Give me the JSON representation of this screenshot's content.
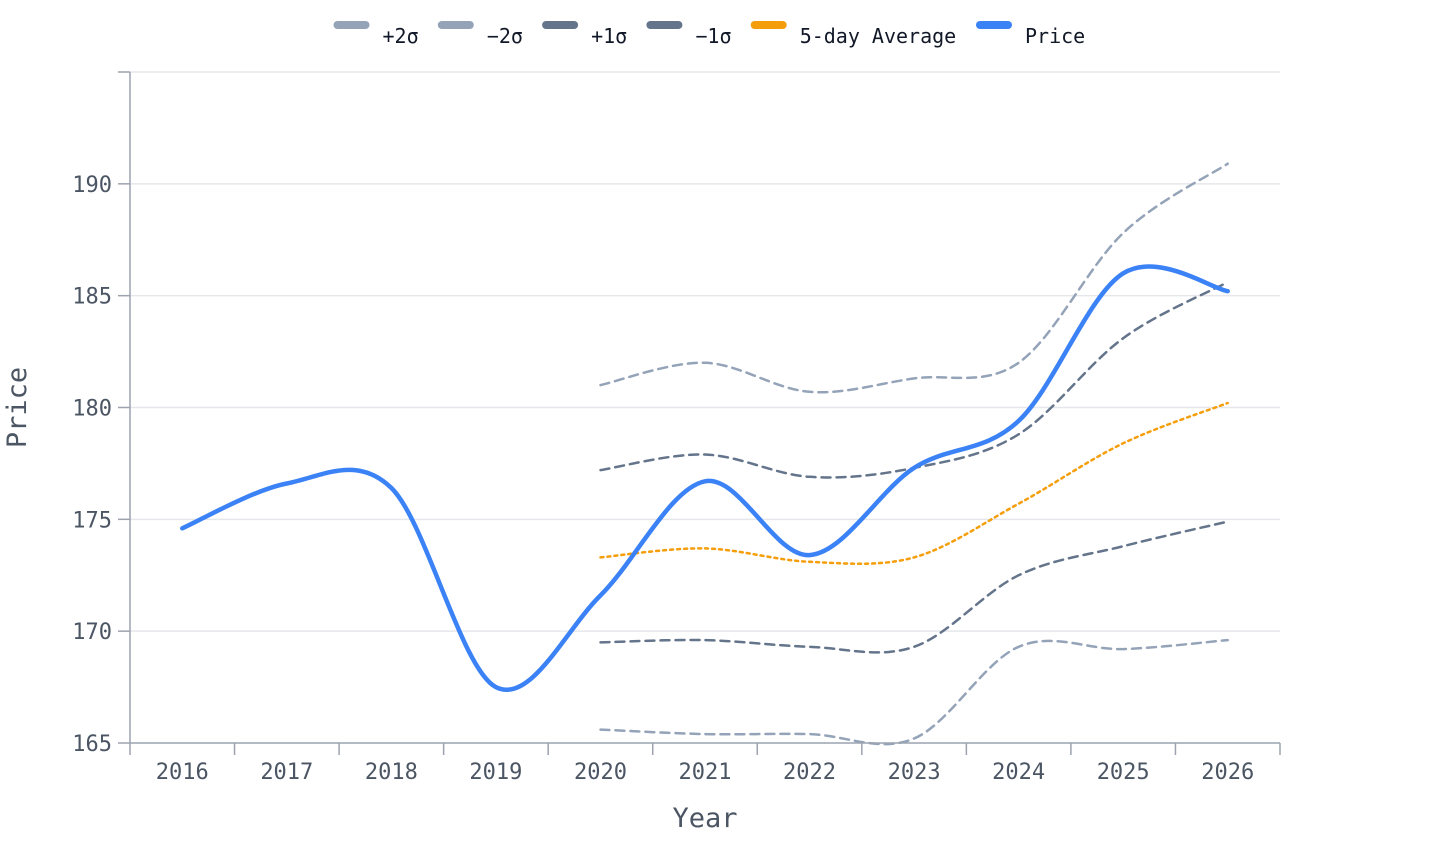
{
  "chart_data": {
    "type": "line",
    "title": "",
    "xlabel": "Year",
    "ylabel": "Price",
    "x": [
      2016,
      2017,
      2018,
      2019,
      2020,
      2021,
      2022,
      2023,
      2024,
      2025,
      2026
    ],
    "xticks": [
      "2016",
      "2017",
      "2018",
      "2019",
      "2020",
      "2021",
      "2022",
      "2023",
      "2024",
      "2025",
      "2026"
    ],
    "xlim": [
      2015.5,
      2026.5
    ],
    "ylim": [
      165,
      195
    ],
    "yticks": [
      165,
      170,
      175,
      180,
      185,
      190
    ],
    "grid": true,
    "legend_position": "top-center",
    "series": [
      {
        "name": "+2σ",
        "color": "#94a3b8",
        "style": "dashed",
        "x": [
          2020,
          2021,
          2022,
          2023,
          2024,
          2025,
          2026
        ],
        "values": [
          181.0,
          182.0,
          180.7,
          181.3,
          182.0,
          187.8,
          190.9
        ]
      },
      {
        "name": "−2σ",
        "color": "#94a3b8",
        "style": "dashed",
        "x": [
          2020,
          2021,
          2022,
          2023,
          2024,
          2025,
          2026
        ],
        "values": [
          165.6,
          165.4,
          165.4,
          165.2,
          169.3,
          169.2,
          169.6
        ]
      },
      {
        "name": "+1σ",
        "color": "#64748b",
        "style": "dashed",
        "x": [
          2020,
          2021,
          2022,
          2023,
          2024,
          2025,
          2026
        ],
        "values": [
          177.2,
          177.9,
          176.9,
          177.3,
          178.8,
          183.1,
          185.6
        ]
      },
      {
        "name": "−1σ",
        "color": "#64748b",
        "style": "dashed",
        "x": [
          2020,
          2021,
          2022,
          2023,
          2024,
          2025,
          2026
        ],
        "values": [
          169.5,
          169.6,
          169.3,
          169.3,
          172.5,
          173.8,
          174.9
        ]
      },
      {
        "name": "5-day Average",
        "color": "#f59e0b",
        "style": "dotted",
        "x": [
          2020,
          2021,
          2022,
          2023,
          2024,
          2025,
          2026
        ],
        "values": [
          173.3,
          173.7,
          173.1,
          173.3,
          175.7,
          178.4,
          180.2
        ]
      },
      {
        "name": "Price",
        "color": "#3b82f6",
        "style": "solid",
        "x": [
          2016,
          2017,
          2018,
          2019,
          2020,
          2021,
          2022,
          2023,
          2024,
          2025,
          2026
        ],
        "values": [
          174.6,
          176.6,
          176.4,
          167.5,
          171.6,
          176.7,
          173.4,
          177.3,
          179.4,
          186.0,
          185.2
        ]
      }
    ]
  }
}
